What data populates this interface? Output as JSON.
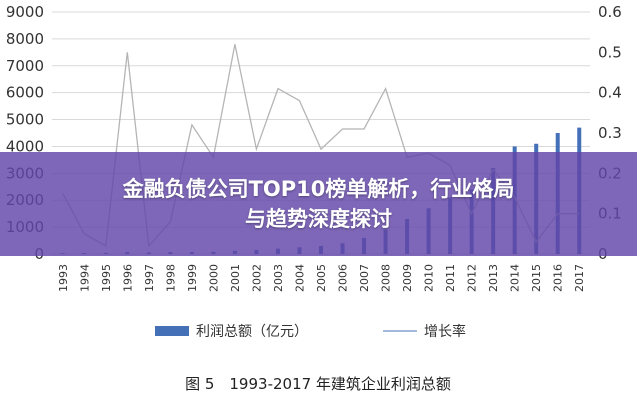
{
  "banner": {
    "line1": "金融负债公司TOP10榜单解析，行业格局",
    "line2": "与趋势深度探讨"
  },
  "caption": "图 5　1993-2017 年建筑企业利润总额",
  "colors": {
    "bar": "#4470b8",
    "line": "#b5b5b5",
    "grid": "#d9d9d9",
    "banner": "#6246a8"
  },
  "chart_data": {
    "type": "bar",
    "title": "",
    "categories": [
      "1993",
      "1994",
      "1995",
      "1996",
      "1997",
      "1998",
      "1999",
      "2000",
      "2001",
      "2002",
      "2003",
      "2004",
      "2005",
      "2006",
      "2007",
      "2008",
      "2009",
      "2010",
      "2011",
      "2012",
      "2013",
      "2014",
      "2015",
      "2016",
      "2017"
    ],
    "y_left": {
      "ylim": [
        0,
        9000
      ],
      "ticks": [
        0,
        1000,
        2000,
        3000,
        4000,
        5000,
        6000,
        7000,
        8000,
        9000
      ]
    },
    "y_right": {
      "ylim": [
        0,
        0.6
      ],
      "ticks": [
        "0",
        "0.1",
        "0.2",
        "0.3",
        "0.4",
        "0.5",
        "0.6"
      ]
    },
    "series": [
      {
        "name": "利润总额（亿元）",
        "kind": "bar",
        "axis": "left",
        "values": [
          30,
          35,
          45,
          70,
          60,
          70,
          75,
          80,
          120,
          150,
          200,
          250,
          300,
          400,
          600,
          900,
          1300,
          1700,
          2100,
          2400,
          3200,
          4000,
          4100,
          4500,
          4700
        ]
      },
      {
        "name": "增长率",
        "kind": "line",
        "axis": "right",
        "values": [
          0.15,
          0.05,
          0.02,
          0.5,
          0.02,
          0.08,
          0.32,
          0.24,
          0.52,
          0.26,
          0.41,
          0.38,
          0.26,
          0.31,
          0.31,
          0.41,
          0.24,
          0.25,
          0.22,
          0.1,
          0.21,
          0.14,
          0.03,
          0.1,
          0.1
        ]
      }
    ],
    "legend": {
      "placement": "bottom"
    }
  }
}
